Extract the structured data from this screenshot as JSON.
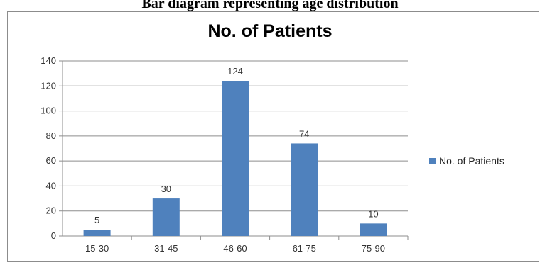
{
  "page": {
    "caption": "Bar diagram representing age distribution"
  },
  "chart_data": {
    "type": "bar",
    "title": "No. of Patients",
    "categories": [
      "15-30",
      "31-45",
      "46-60",
      "61-75",
      "75-90"
    ],
    "series": [
      {
        "name": "No. of Patients",
        "values": [
          5,
          30,
          124,
          74,
          10
        ],
        "color": "#4f81bd"
      }
    ],
    "ylim": [
      0,
      140
    ],
    "yticks": [
      0,
      20,
      40,
      60,
      80,
      100,
      120,
      140
    ],
    "grid": true,
    "legend_position": "right"
  }
}
